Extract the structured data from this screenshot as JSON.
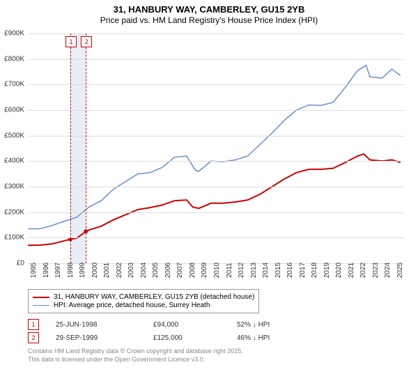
{
  "title": {
    "line1": "31, HANBURY WAY, CAMBERLEY, GU15 2YB",
    "line2": "Price paid vs. HM Land Registry's House Price Index (HPI)",
    "fontsize_line1": 13,
    "fontsize_line2": 12,
    "color": "#000000"
  },
  "chart": {
    "type": "line",
    "background_color": "#ffffff",
    "grid_color": "#dddddd",
    "axis_color": "#999999",
    "tick_fontsize": 10,
    "ylim": [
      0,
      900000
    ],
    "ytick_step": 100000,
    "y_ticks": [
      "£0",
      "£100K",
      "£200K",
      "£300K",
      "£400K",
      "£500K",
      "£600K",
      "£700K",
      "£800K",
      "£900K"
    ],
    "x_years": [
      1995,
      1996,
      1997,
      1998,
      1999,
      2000,
      2001,
      2002,
      2003,
      2004,
      2005,
      2006,
      2007,
      2008,
      2009,
      2010,
      2011,
      2012,
      2013,
      2014,
      2015,
      2016,
      2017,
      2018,
      2019,
      2020,
      2021,
      2022,
      2023,
      2024,
      2025
    ],
    "x_range": [
      1995,
      2025.8
    ],
    "series": [
      {
        "name": "price_paid",
        "label": "31, HANBURY WAY, CAMBERLEY, GU15 2YB (detached house)",
        "color": "#cc0000",
        "line_width": 2,
        "points": [
          [
            1995,
            70000
          ],
          [
            1996,
            71000
          ],
          [
            1997,
            76000
          ],
          [
            1998,
            88000
          ],
          [
            1998.48,
            94000
          ],
          [
            1999,
            98000
          ],
          [
            1999.75,
            125000
          ],
          [
            2000,
            130000
          ],
          [
            2001,
            145000
          ],
          [
            2002,
            170000
          ],
          [
            2003,
            190000
          ],
          [
            2004,
            210000
          ],
          [
            2005,
            218000
          ],
          [
            2006,
            228000
          ],
          [
            2007,
            245000
          ],
          [
            2008,
            248000
          ],
          [
            2008.5,
            220000
          ],
          [
            2009,
            215000
          ],
          [
            2010,
            235000
          ],
          [
            2011,
            235000
          ],
          [
            2012,
            240000
          ],
          [
            2013,
            248000
          ],
          [
            2014,
            270000
          ],
          [
            2015,
            300000
          ],
          [
            2016,
            330000
          ],
          [
            2017,
            355000
          ],
          [
            2018,
            368000
          ],
          [
            2019,
            368000
          ],
          [
            2020,
            372000
          ],
          [
            2021,
            395000
          ],
          [
            2022,
            420000
          ],
          [
            2022.5,
            428000
          ],
          [
            2023,
            405000
          ],
          [
            2024,
            400000
          ],
          [
            2024.8,
            405000
          ],
          [
            2025.5,
            395000
          ]
        ]
      },
      {
        "name": "hpi",
        "label": "HPI: Average price, detached house, Surrey Heath",
        "color": "#6a8fc5",
        "line_width": 1.5,
        "points": [
          [
            1995,
            135000
          ],
          [
            1996,
            135000
          ],
          [
            1997,
            148000
          ],
          [
            1998,
            165000
          ],
          [
            1999,
            180000
          ],
          [
            2000,
            220000
          ],
          [
            2001,
            245000
          ],
          [
            2002,
            290000
          ],
          [
            2003,
            320000
          ],
          [
            2004,
            350000
          ],
          [
            2005,
            355000
          ],
          [
            2006,
            375000
          ],
          [
            2007,
            415000
          ],
          [
            2008,
            420000
          ],
          [
            2008.7,
            365000
          ],
          [
            2009,
            360000
          ],
          [
            2010,
            400000
          ],
          [
            2011,
            398000
          ],
          [
            2012,
            405000
          ],
          [
            2013,
            420000
          ],
          [
            2014,
            465000
          ],
          [
            2015,
            510000
          ],
          [
            2016,
            560000
          ],
          [
            2017,
            600000
          ],
          [
            2018,
            620000
          ],
          [
            2019,
            618000
          ],
          [
            2020,
            630000
          ],
          [
            2021,
            690000
          ],
          [
            2022,
            755000
          ],
          [
            2022.7,
            775000
          ],
          [
            2023,
            730000
          ],
          [
            2024,
            725000
          ],
          [
            2024.8,
            760000
          ],
          [
            2025.5,
            735000
          ]
        ]
      }
    ],
    "markers": [
      {
        "n": "1",
        "year": 1998.48,
        "box_color": "#cc0000"
      },
      {
        "n": "2",
        "year": 1999.75,
        "box_color": "#cc0000"
      }
    ],
    "marker_band": {
      "start": 1998.48,
      "end": 1999.75,
      "color": "#e8eef7"
    },
    "sale_points": [
      {
        "year": 1998.48,
        "value": 94000
      },
      {
        "year": 1999.75,
        "value": 125000
      }
    ]
  },
  "legend": {
    "border_color": "#999999",
    "fontsize": 10
  },
  "sales": [
    {
      "n": "1",
      "date": "25-JUN-1998",
      "price": "£94,000",
      "delta": "52% ↓ HPI"
    },
    {
      "n": "2",
      "date": "29-SEP-1999",
      "price": "£125,000",
      "delta": "46% ↓ HPI"
    }
  ],
  "footer": {
    "line1": "Contains HM Land Registry data © Crown copyright and database right 2025.",
    "line2": "This data is licensed under the Open Government Licence v3.0.",
    "color": "#888888",
    "fontsize": 9
  }
}
